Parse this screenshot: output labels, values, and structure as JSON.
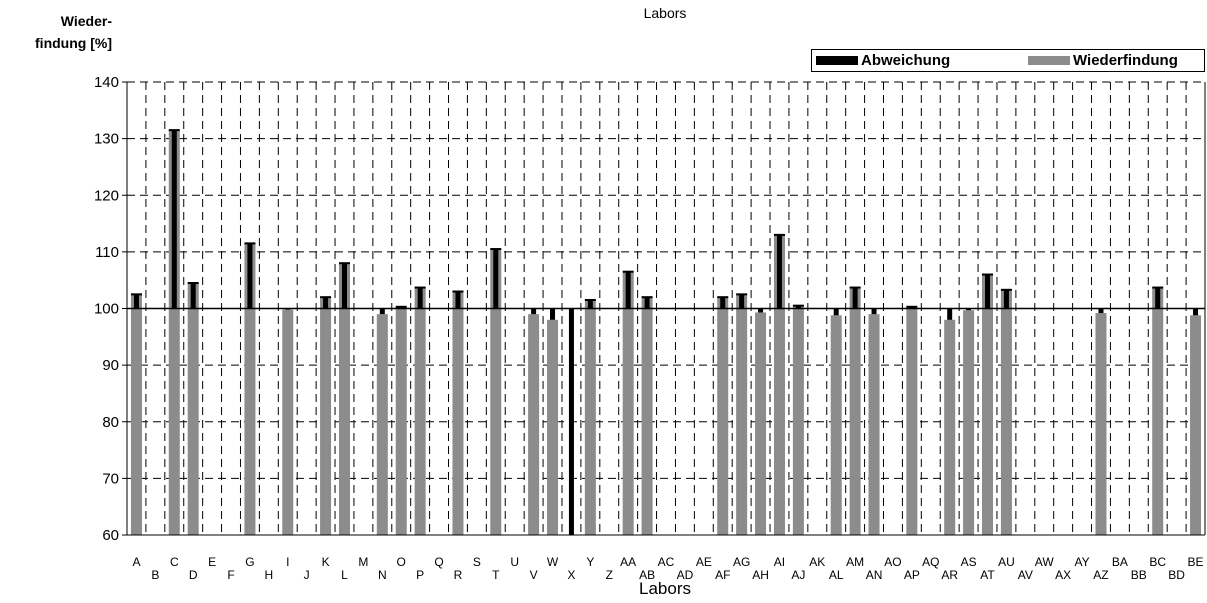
{
  "chart_data": {
    "type": "bar",
    "title": "Labors",
    "xlabel": "Labors",
    "ylabel": "Wieder-\nfindung [%]",
    "ylim": [
      60,
      140
    ],
    "yticks": [
      60,
      70,
      80,
      90,
      100,
      110,
      120,
      130,
      140
    ],
    "reference_line": 100,
    "grid": true,
    "legend_position": "top-right",
    "colors": {
      "Abweichung": "#000000",
      "Wiederfindung": "#8c8c8c"
    },
    "categories": [
      "A",
      "B",
      "C",
      "D",
      "E",
      "F",
      "G",
      "H",
      "I",
      "J",
      "K",
      "L",
      "M",
      "N",
      "O",
      "P",
      "Q",
      "R",
      "S",
      "T",
      "U",
      "V",
      "W",
      "X",
      "Y",
      "Z",
      "AA",
      "AB",
      "AC",
      "AD",
      "AE",
      "AF",
      "AG",
      "AH",
      "AI",
      "AJ",
      "AK",
      "AL",
      "AM",
      "AN",
      "AO",
      "AP",
      "AQ",
      "AR",
      "AS",
      "AT",
      "AU",
      "AV",
      "AW",
      "AX",
      "AY",
      "AZ",
      "BA",
      "BB",
      "BC",
      "BD",
      "BE"
    ],
    "series": [
      {
        "name": "Abweichung",
        "values": [
          2.5,
          null,
          31.5,
          4.5,
          null,
          null,
          11.5,
          null,
          -0.2,
          null,
          2,
          8,
          null,
          -1,
          0.3,
          3.7,
          null,
          3,
          null,
          10.5,
          null,
          -1,
          -2,
          -40,
          1.5,
          null,
          6.5,
          2,
          null,
          null,
          null,
          2,
          2.5,
          -0.7,
          13,
          0.5,
          null,
          -1.2,
          3.7,
          -1,
          null,
          0.3,
          null,
          -2,
          -0.3,
          6,
          3.3,
          null,
          null,
          null,
          null,
          -0.8,
          null,
          null,
          3.7,
          null,
          -1.2
        ]
      },
      {
        "name": "Wiederfindung",
        "values": [
          102.5,
          null,
          131.5,
          104.5,
          null,
          null,
          111.5,
          null,
          99.8,
          null,
          102,
          108,
          null,
          99,
          100.3,
          103.7,
          null,
          103,
          null,
          110.5,
          null,
          99,
          98,
          60,
          101.5,
          null,
          106.5,
          102,
          null,
          null,
          null,
          102,
          102.5,
          99.3,
          113,
          100.5,
          null,
          98.8,
          103.7,
          99,
          null,
          100.3,
          null,
          98,
          99.7,
          106,
          103.3,
          null,
          null,
          null,
          null,
          99.2,
          null,
          null,
          103.7,
          null,
          98.8
        ]
      }
    ]
  }
}
